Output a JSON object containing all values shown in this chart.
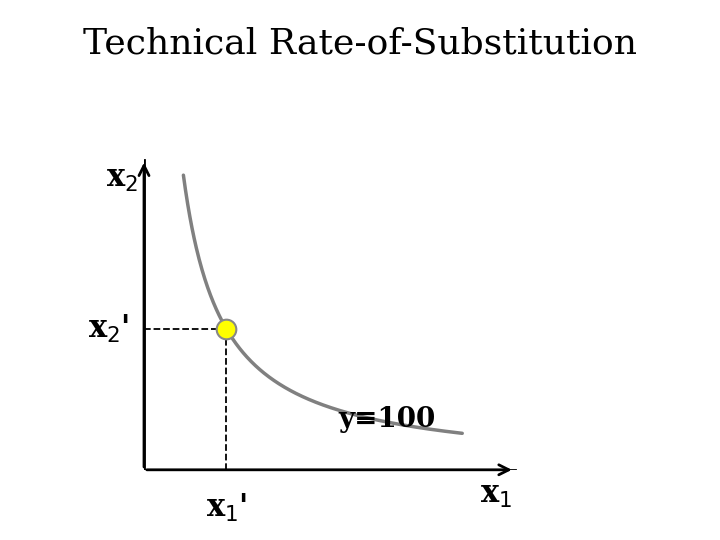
{
  "title": "Technical Rate-of-Substitution",
  "title_fontsize": 26,
  "background_color": "#ffffff",
  "curve_color": "#808080",
  "curve_linewidth": 2.5,
  "point_x": 2.2,
  "point_y": 4.5,
  "point_color": "#ffff00",
  "point_edgecolor": "#888888",
  "point_size": 200,
  "dashed_color": "#000000",
  "axis_color": "#000000",
  "xlim": [
    0,
    10
  ],
  "ylim": [
    0,
    10
  ],
  "x1_label": "x$_1$",
  "x2_label": "x$_2$",
  "x1_prime_label": "x$_1$'",
  "x2_prime_label": "x$_2$'",
  "isoquant_label": "y≡100",
  "label_fontsize": 18,
  "axis_label_fontsize": 18
}
